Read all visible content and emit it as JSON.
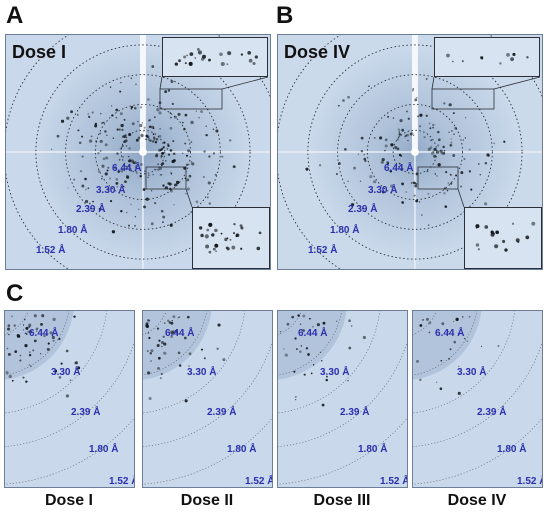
{
  "panels": {
    "a": {
      "letter": "A",
      "title": "Dose I"
    },
    "b": {
      "letter": "B",
      "title": "Dose IV"
    },
    "c": {
      "letter": "C"
    }
  },
  "resolution_labels": [
    "6.44 Å",
    "3.30 Å",
    "2.39 Å",
    "1.80 Å",
    "1.52 Å"
  ],
  "captions": [
    "Dose I",
    "Dose II",
    "Dose III",
    "Dose IV"
  ],
  "colors": {
    "detector_background": "#c9d8ea",
    "ring_dotted": "#2a2f38",
    "label_blue": "#2b2fae",
    "spot_dark": "#101418"
  }
}
